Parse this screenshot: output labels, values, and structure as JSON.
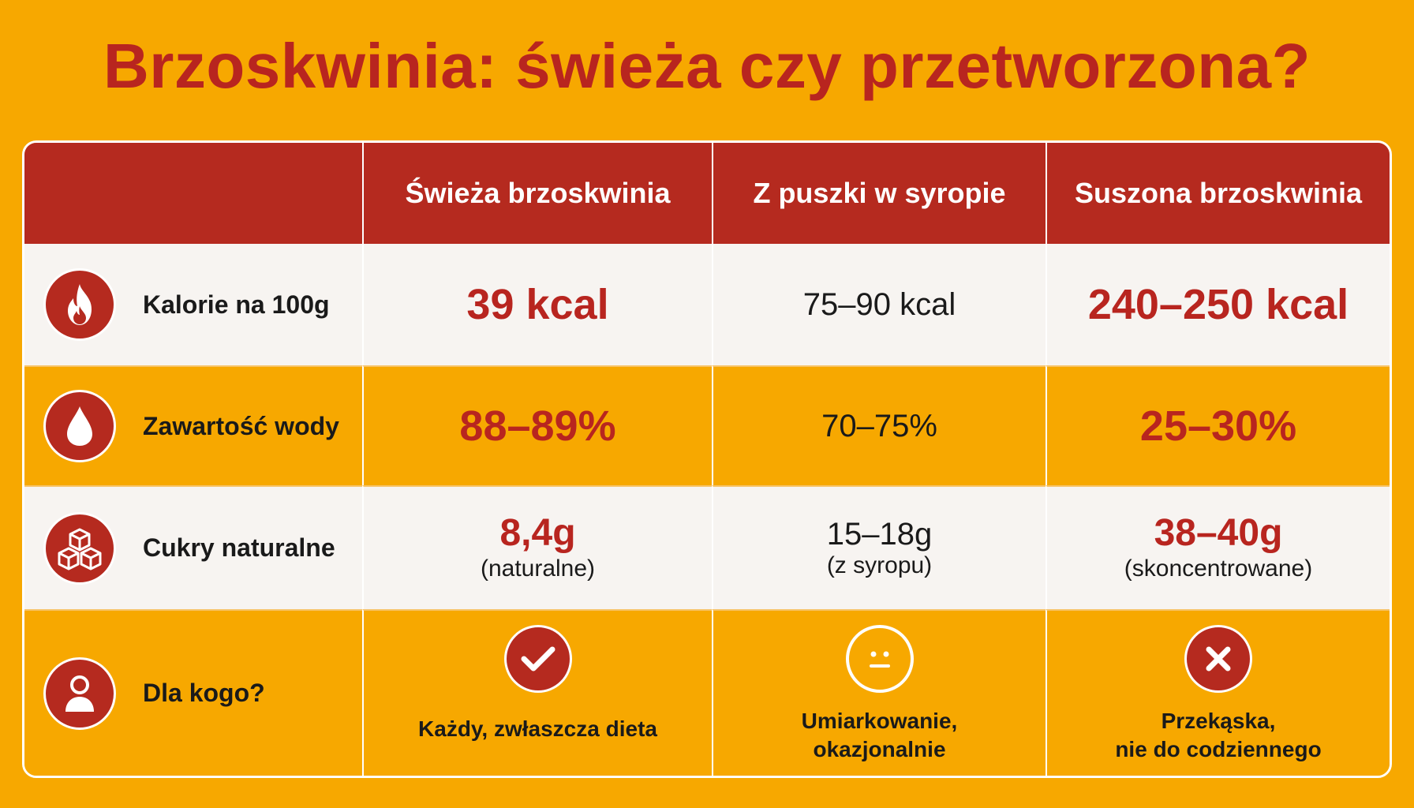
{
  "title": "Brzoskwinia: świeża czy przetworzona?",
  "columns": [
    "Świeża brzoskwinia",
    "Z puszki w syropie",
    "Suszona brzoskwinia"
  ],
  "rows": {
    "calories": {
      "label": "Kalorie na 100g",
      "icon": "fire-icon",
      "values": [
        "39 kcal",
        "75–90 kcal",
        "240–250 kcal"
      ]
    },
    "water": {
      "label": "Zawartość wody",
      "icon": "water-drop-icon",
      "values": [
        "88–89%",
        "70–75%",
        "25–30%"
      ]
    },
    "sugar": {
      "label": "Cukry naturalne",
      "icon": "sugar-cubes-icon",
      "values": [
        "8,4g",
        "15–18g",
        "38–40g"
      ],
      "notes": [
        "(naturalne)",
        "(z syropu)",
        "(skoncentrowane)"
      ]
    },
    "audience": {
      "label": "Dla kogo?",
      "icon": "person-icon",
      "verdict_icons": [
        "check-icon",
        "neutral-face-icon",
        "cross-icon"
      ],
      "values": [
        "Każdy, zwłaszcza dieta",
        "Umiarkowanie,\nokazjonalnie",
        "Przekąska,\nnie do codziennego"
      ]
    }
  },
  "colors": {
    "background": "#F7A800",
    "accent_red": "#B52A1F",
    "row_light": "#F7F4F1"
  }
}
